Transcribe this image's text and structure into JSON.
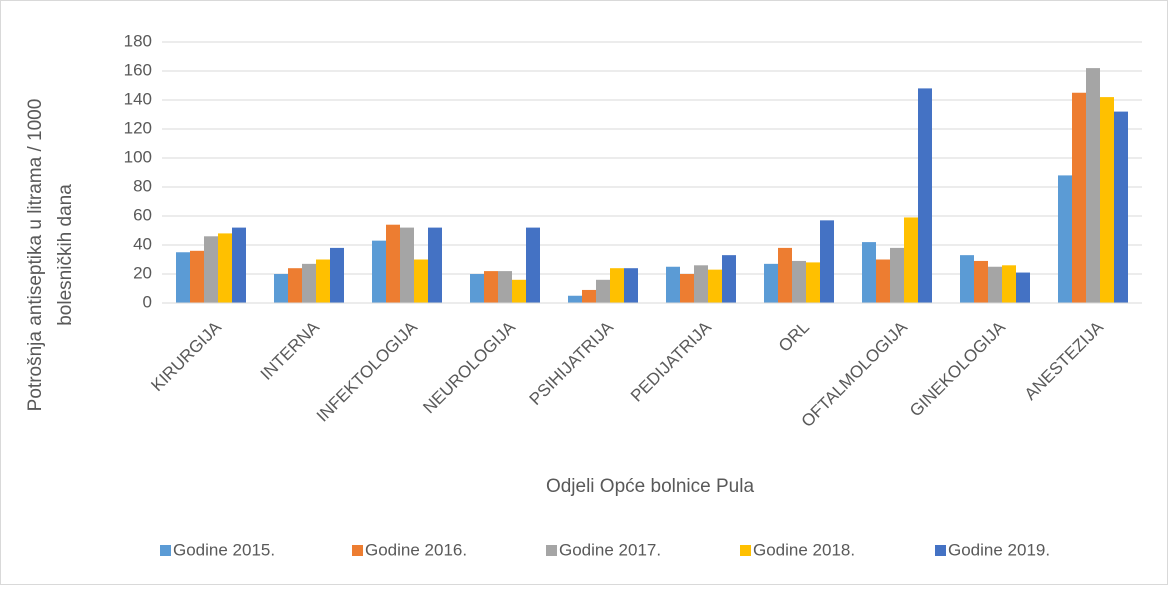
{
  "chart_data": {
    "type": "bar",
    "categories": [
      "KIRURGIJA",
      "INTERNA",
      "INFEKTOLOGIJA",
      "NEUROLOGIJA",
      "PSIHIJATRIJA",
      "PEDIJATRIJA",
      "ORL",
      "OFTALMOLOGIJA",
      "GINEKOLOGIJA",
      "ANESTEZIJA"
    ],
    "series": [
      {
        "name": "Godine 2015.",
        "color": "#5b9bd5",
        "values": [
          35,
          20,
          43,
          20,
          5,
          25,
          27,
          42,
          33,
          88
        ]
      },
      {
        "name": "Godine 2016.",
        "color": "#ed7d31",
        "values": [
          36,
          24,
          54,
          22,
          9,
          20,
          38,
          30,
          29,
          145
        ]
      },
      {
        "name": "Godine 2017.",
        "color": "#a5a5a5",
        "values": [
          46,
          27,
          52,
          22,
          16,
          26,
          29,
          38,
          25,
          162
        ]
      },
      {
        "name": "Godine 2018.",
        "color": "#ffc000",
        "values": [
          48,
          30,
          30,
          16,
          24,
          23,
          28,
          59,
          26,
          142
        ]
      },
      {
        "name": "Godine 2019.",
        "color": "#4472c4",
        "values": [
          52,
          38,
          52,
          52,
          24,
          33,
          57,
          148,
          21,
          132
        ]
      }
    ],
    "xlabel": "Odjeli Opće bolnice Pula",
    "ylabel": [
      "Potrošnja antiseptika u litrama / 1000",
      "bolesničkih dana"
    ],
    "ylim": [
      0,
      180
    ],
    "yticks": [
      0,
      20,
      40,
      60,
      80,
      100,
      120,
      140,
      160,
      180
    ],
    "grid": true,
    "legend": "bottom"
  }
}
